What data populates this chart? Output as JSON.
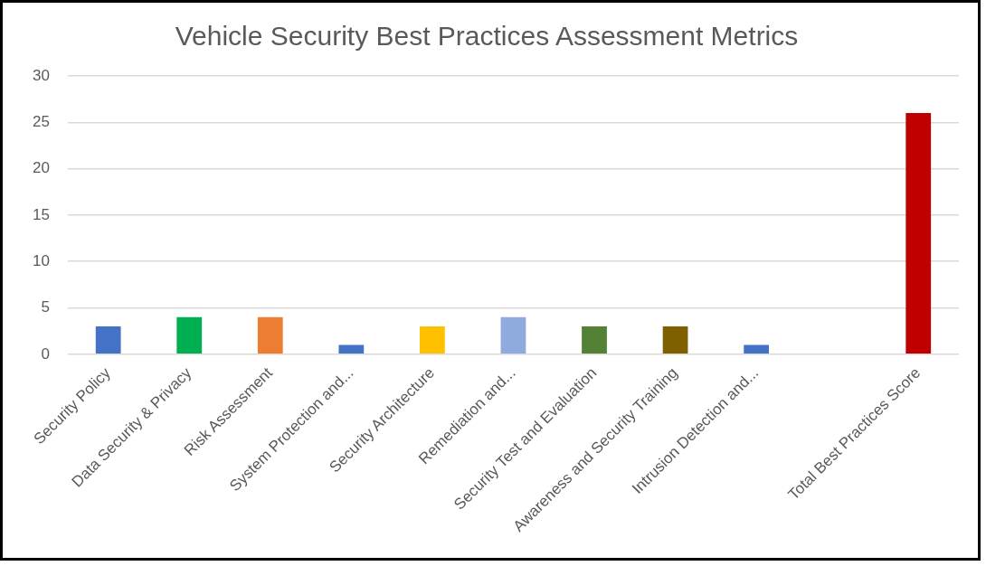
{
  "chart_data": {
    "type": "bar",
    "title": "Vehicle Security Best Practices Assessment Metrics",
    "categories": [
      "Security Policy",
      "Data Security & Privacy",
      "Risk Assessment",
      "System Protection and...",
      "Security Architecture",
      "Remediation and...",
      "Security Test and Evaluation",
      "Awareness and Security Training",
      "Intrusion Detection and...",
      null,
      "Total Best Practices Score"
    ],
    "values": [
      3,
      4,
      4,
      1,
      3,
      4,
      3,
      3,
      1,
      null,
      26
    ],
    "colors": [
      "#4472c4",
      "#00b050",
      "#ed7d31",
      "#4472c4",
      "#ffc000",
      "#8faadc",
      "#548235",
      "#7f6000",
      "#4472c4",
      "#4472c4",
      "#c00000"
    ],
    "ylim": [
      0,
      30
    ],
    "yticks": [
      0,
      5,
      10,
      15,
      20,
      25,
      30
    ],
    "grid": "y",
    "legend": false
  }
}
